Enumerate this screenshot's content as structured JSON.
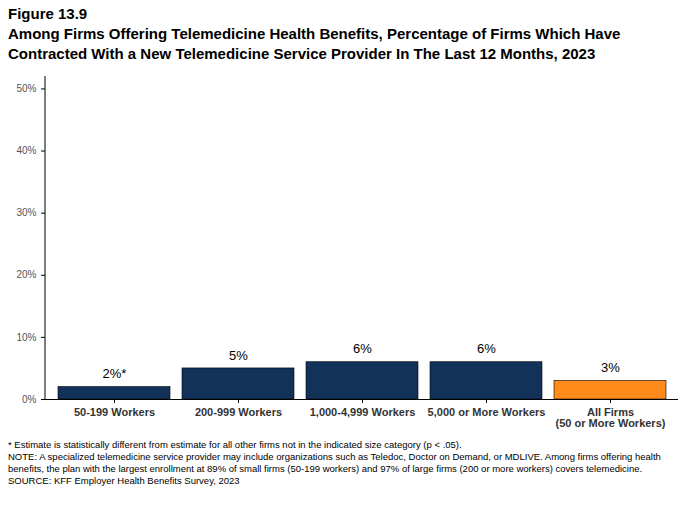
{
  "chart_data": {
    "type": "bar",
    "figure_number": "Figure 13.9",
    "title": "Among Firms Offering Telemedicine Health Benefits, Percentage of Firms Which Have Contracted With a New Telemedicine Service Provider In The Last 12 Months, 2023",
    "categories": [
      "50-199 Workers",
      "200-999 Workers",
      "1,000-4,999 Workers",
      "5,000 or More Workers",
      "All Firms\n(50 or More Workers)"
    ],
    "values": [
      2,
      5,
      6,
      6,
      3
    ],
    "value_labels": [
      "2%*",
      "5%",
      "6%",
      "6%",
      "3%"
    ],
    "colors": [
      "#12325a",
      "#12325a",
      "#12325a",
      "#12325a",
      "#ff8c1a"
    ],
    "data_labels": true,
    "grid": false,
    "ylim": [
      0,
      52
    ],
    "yticks": [
      {
        "value": 0,
        "label": "0%"
      },
      {
        "value": 10,
        "label": "10%"
      },
      {
        "value": 20,
        "label": "20%"
      },
      {
        "value": 30,
        "label": "30%"
      },
      {
        "value": 40,
        "label": "40%"
      },
      {
        "value": 50,
        "label": "50%"
      }
    ],
    "notes": [
      "* Estimate is statistically different from estimate for all other firms not in the indicated size category (p < .05).",
      "NOTE: A specialized telemedicine service provider may include organizations such as Teledoc, Doctor on Demand, or MDLIVE. Among firms offering health benefits, the plan with the largest enrollment at 89% of small firms (50-199 workers) and 97% of large firms (200 or more workers) covers telemedicine.",
      "SOURCE: KFF Employer Health Benefits Survey, 2023"
    ]
  }
}
